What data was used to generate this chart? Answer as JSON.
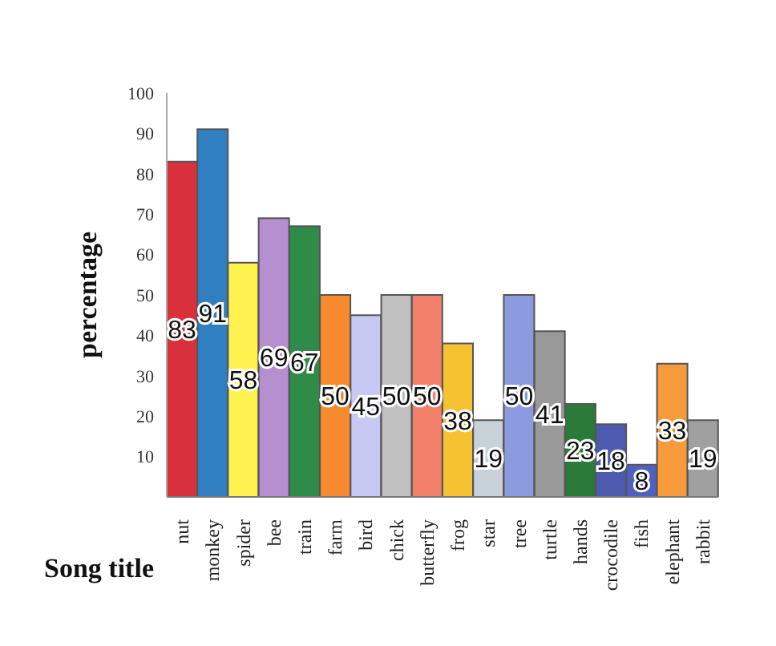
{
  "chart_data": {
    "type": "bar",
    "xlabel": "Song title",
    "ylabel": "percentage",
    "categories": [
      "nut",
      "monkey",
      "spider",
      "bee",
      "train",
      "farm",
      "bird",
      "chick",
      "butterfly",
      "frog",
      "star",
      "tree",
      "turtle",
      "hands",
      "crocodile",
      "fish",
      "elephant",
      "rabbit"
    ],
    "values": [
      83,
      91,
      58,
      69,
      67,
      50,
      45,
      50,
      50,
      38,
      19,
      50,
      41,
      23,
      18,
      8,
      33,
      19
    ],
    "colors": [
      "#d9313c",
      "#2f7fc1",
      "#fff24f",
      "#b58fd0",
      "#2e8b48",
      "#f78a2e",
      "#c8c8f5",
      "#c0c0c0",
      "#f0806a",
      "#f7c232",
      "#c8d0d8",
      "#8c9be0",
      "#9a9a9a",
      "#2a7a3a",
      "#4c5ab0",
      "#5060c0",
      "#f79a3a",
      "#a0a0a0"
    ],
    "ylim": [
      0,
      100
    ],
    "yticks": [
      10,
      20,
      30,
      40,
      50,
      60,
      70,
      80,
      90,
      100
    ],
    "data_labels": true
  }
}
